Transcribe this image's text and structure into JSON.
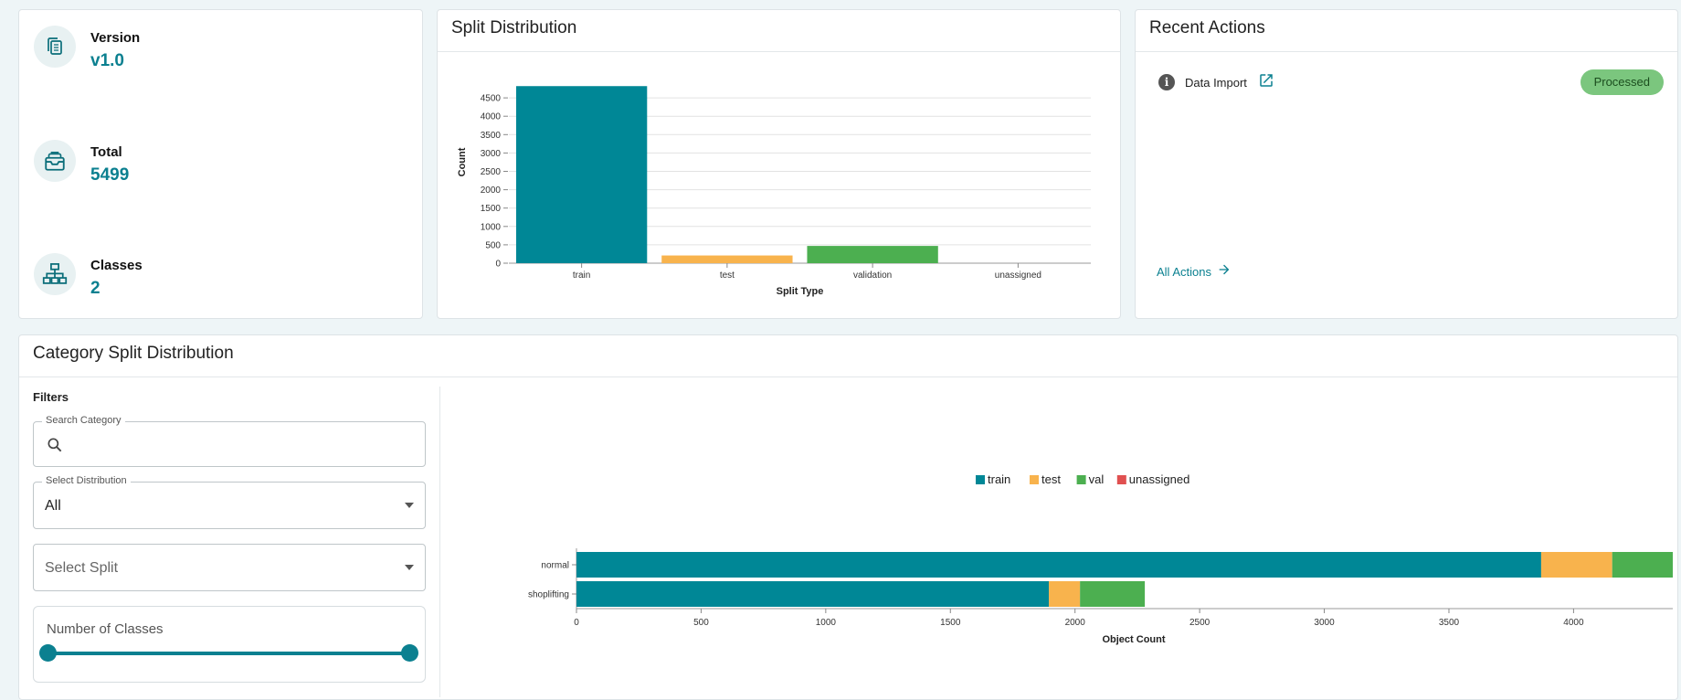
{
  "stats": [
    {
      "label": "Version",
      "value": "v1.0",
      "icon": "copy-icon"
    },
    {
      "label": "Total",
      "value": "5499",
      "icon": "inbox-icon"
    },
    {
      "label": "Classes",
      "value": "2",
      "icon": "hierarchy-icon"
    }
  ],
  "split_card": {
    "title": "Split Distribution"
  },
  "recent_actions": {
    "title": "Recent Actions",
    "items": [
      {
        "label": "Data Import",
        "status": "Processed"
      }
    ],
    "all_actions": "All Actions"
  },
  "category_card": {
    "title": "Category Split Distribution",
    "filters_title": "Filters",
    "search": {
      "legend": "Search Category",
      "value": ""
    },
    "distribution": {
      "legend": "Select Distribution",
      "value": "All"
    },
    "split": {
      "placeholder": "Select Split"
    },
    "num_classes": {
      "label": "Number of Classes",
      "range": [
        0,
        1
      ]
    }
  },
  "colors": {
    "train": "#008796",
    "test": "#f8b34d",
    "val": "#4caf50",
    "unassigned": "#e05050",
    "accent": "#0b8090"
  },
  "chart_data": [
    {
      "type": "bar",
      "categories": [
        "train",
        "test",
        "validation",
        "unassigned"
      ],
      "values": [
        4820,
        210,
        470,
        0
      ],
      "xlabel": "Split Type",
      "ylabel": "Count",
      "ylim": [
        0,
        5000
      ],
      "yticks": [
        0,
        500,
        1000,
        1500,
        2000,
        2500,
        3000,
        3500,
        4000,
        4500
      ],
      "grid": true
    },
    {
      "type": "bar",
      "orientation": "horizontal",
      "stacked": true,
      "categories": [
        "normal",
        "shoplifting"
      ],
      "series": [
        {
          "name": "train",
          "values": [
            3870,
            1895
          ]
        },
        {
          "name": "test",
          "values": [
            285,
            125
          ]
        },
        {
          "name": "val",
          "values": [
            270,
            260
          ]
        },
        {
          "name": "unassigned",
          "values": [
            0,
            0
          ]
        }
      ],
      "xlabel": "Object Count",
      "ylabel": "",
      "xlim": [
        0,
        4420
      ],
      "xticks": [
        0,
        500,
        1000,
        1500,
        2000,
        2500,
        3000,
        3500,
        4000
      ],
      "legend": "top"
    }
  ]
}
